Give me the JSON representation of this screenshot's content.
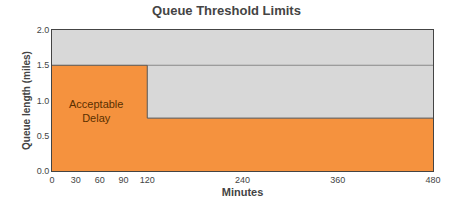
{
  "chart_data": {
    "type": "area",
    "title": "Queue Threshold Limits",
    "xlabel": "Minutes",
    "ylabel": "Queue length (miles)",
    "xlim": [
      0,
      480
    ],
    "ylim": [
      0,
      2
    ],
    "xticks": [
      0,
      30,
      60,
      90,
      120,
      240,
      360,
      480
    ],
    "yticks": [
      {
        "value": 0,
        "label": "0.0"
      },
      0.5,
      {
        "value": 1,
        "label": "1.0"
      },
      1.5,
      {
        "value": 2,
        "label": "2.0"
      }
    ],
    "grid": false,
    "series": [
      {
        "type": "area",
        "color": "#D8D8D8",
        "x": [
          0,
          480
        ],
        "values": [
          2,
          2
        ]
      },
      {
        "type": "area",
        "color": "#F5923E",
        "x": [
          0,
          120,
          120,
          480
        ],
        "values": [
          1.5,
          1.5,
          0.75,
          0.75
        ]
      },
      {
        "type": "line",
        "color": "#888888",
        "x": [
          120,
          480
        ],
        "values": [
          1.5,
          1.5
        ]
      },
      {
        "type": "line",
        "color": "#555555",
        "x": [
          0,
          120,
          120,
          480
        ],
        "values": [
          1.5,
          1.5,
          0.75,
          0.75
        ]
      }
    ],
    "annotations": [
      {
        "text": "Acceptable\nDelay",
        "x": 55,
        "y": 0.85,
        "color": "#5A3000"
      }
    ]
  }
}
